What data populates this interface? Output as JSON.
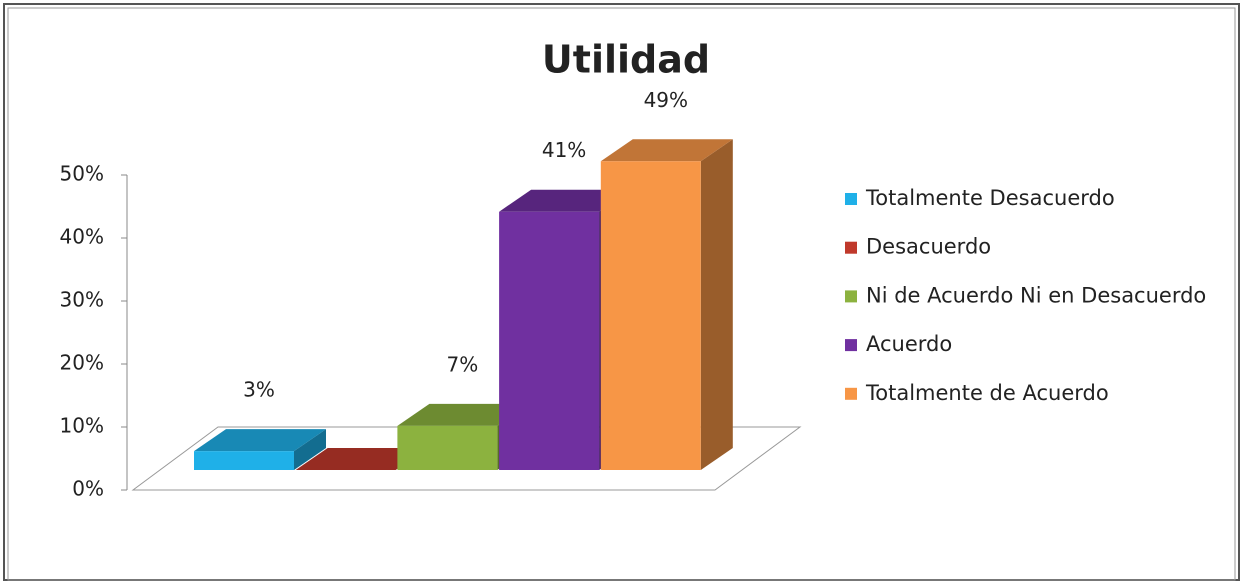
{
  "chart_data": {
    "type": "bar3d",
    "title": "Utilidad",
    "series": [
      {
        "name": "Totalmente Desacuerdo",
        "color": "#1fb0e8",
        "values": [
          3
        ],
        "value_labels": [
          "3%"
        ]
      },
      {
        "name": "Desacuerdo",
        "color": "#c0392b",
        "values": [
          0
        ]
      },
      {
        "name": "Ni de Acuerdo Ni en Desacuerdo",
        "color": "#8cb23f",
        "values": [
          7
        ],
        "value_labels": [
          "7%"
        ]
      },
      {
        "name": "Acuerdo",
        "color": "#7030a0",
        "values": [
          41
        ],
        "value_labels": [
          "41%"
        ]
      },
      {
        "name": "Totalmente de Acuerdo",
        "color": "#f79646",
        "values": [
          49
        ],
        "value_labels": [
          "49%"
        ]
      }
    ],
    "ylim": [
      0,
      50
    ],
    "yticks": [
      {
        "value": 0,
        "label": "0%"
      },
      {
        "value": 10,
        "label": "10%"
      },
      {
        "value": 20,
        "label": "20%"
      },
      {
        "value": 30,
        "label": "30%"
      },
      {
        "value": 40,
        "label": "40%"
      },
      {
        "value": 50,
        "label": "50%"
      }
    ],
    "legend": "right"
  }
}
